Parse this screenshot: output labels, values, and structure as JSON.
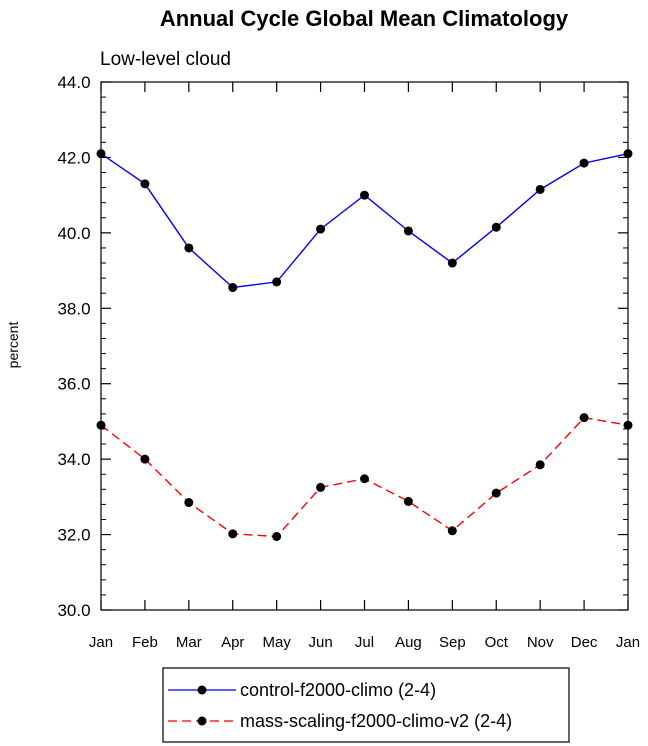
{
  "chart_data": {
    "type": "line",
    "title": "Annual Cycle Global Mean Climatology",
    "subtitle": "Low-level cloud",
    "ylabel": "percent",
    "xlabel": "",
    "categories": [
      "Jan",
      "Feb",
      "Mar",
      "Apr",
      "May",
      "Jun",
      "Jul",
      "Aug",
      "Sep",
      "Oct",
      "Nov",
      "Dec",
      "Jan"
    ],
    "ylim": [
      30.0,
      44.0
    ],
    "yticks": [
      "30.0",
      "32.0",
      "34.0",
      "36.0",
      "38.0",
      "40.0",
      "42.0",
      "44.0"
    ],
    "grid": false,
    "legend_position": "bottom",
    "series": [
      {
        "name": "control-f2000-climo (2-4)",
        "color": "#0000ff",
        "dashed": false,
        "values": [
          42.1,
          41.3,
          39.6,
          38.55,
          38.7,
          40.1,
          41.0,
          40.05,
          39.2,
          40.15,
          41.15,
          41.85,
          42.1
        ]
      },
      {
        "name": "mass-scaling-f2000-climo-v2 (2-4)",
        "color": "#ff0000",
        "dashed": true,
        "values": [
          34.9,
          34.0,
          32.85,
          32.02,
          31.95,
          33.25,
          33.48,
          32.88,
          32.1,
          33.1,
          33.85,
          35.1,
          34.9
        ]
      }
    ]
  }
}
